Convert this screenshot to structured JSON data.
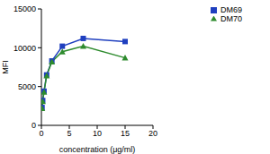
{
  "chart_data": {
    "type": "line",
    "x_label": "concentration (μg/ml)",
    "y_label": "MFI",
    "xlim": [
      0,
      20
    ],
    "xticks": [
      0,
      5,
      10,
      15,
      20
    ],
    "ylim": [
      0,
      15000
    ],
    "yticks": [
      0,
      5000,
      10000,
      15000
    ],
    "grid": false,
    "legend": "top right",
    "series": [
      {
        "name": "DM69",
        "color": "#1f3fbf",
        "marker": "square",
        "x": [
          0.117,
          0.234,
          0.469,
          0.938,
          1.875,
          3.75,
          7.5,
          15
        ],
        "values": [
          2300,
          3200,
          4400,
          6500,
          8300,
          10200,
          11200,
          10800
        ]
      },
      {
        "name": "DM70",
        "color": "#2e8b2e",
        "marker": "triangle",
        "x": [
          0.117,
          0.234,
          0.469,
          0.938,
          1.875,
          3.75,
          7.5,
          15
        ],
        "values": [
          2200,
          3100,
          4300,
          6400,
          8200,
          9500,
          10200,
          8700
        ]
      }
    ]
  }
}
